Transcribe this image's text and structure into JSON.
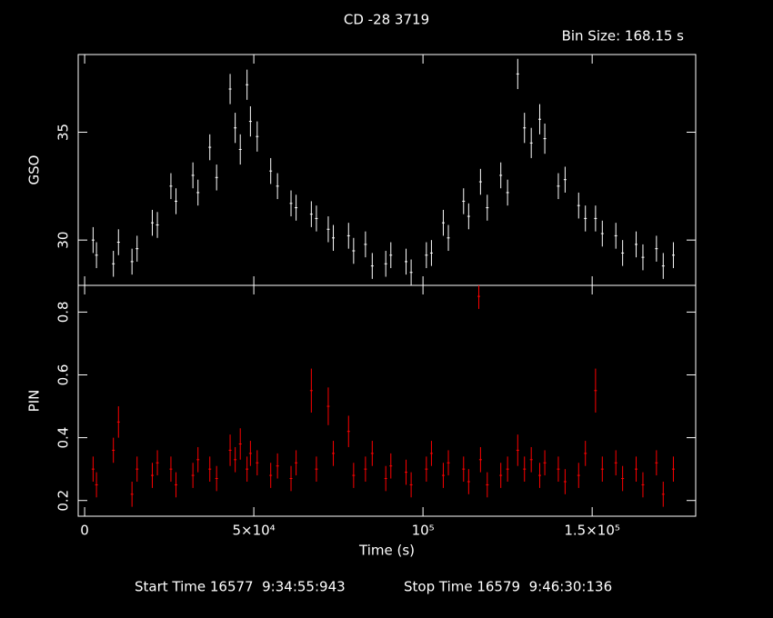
{
  "footer": [
    "Start Time 16577  9:34:55:943",
    "Stop Time 16579  9:46:30:136"
  ],
  "chart_data": [
    {
      "type": "scatter",
      "title": "CD -28 3719",
      "subtitle": "Bin Size: 168.15 s",
      "y_label": "GSO",
      "color": "#ffffff",
      "xlim": [
        -1900,
        180600
      ],
      "ylim": [
        27.9,
        38.6
      ],
      "yticks": [
        30,
        35
      ],
      "xticks": [
        0,
        50000,
        100000,
        150000
      ],
      "x": [
        2500,
        3500,
        8500,
        10000,
        14000,
        15500,
        20000,
        21500,
        25500,
        27000,
        32000,
        33500,
        37000,
        39000,
        43000,
        44500,
        46000,
        48000,
        49000,
        51000,
        55000,
        57000,
        61000,
        62500,
        67000,
        68500,
        72000,
        73500,
        78000,
        79500,
        83000,
        85000,
        89000,
        90500,
        95000,
        96500,
        101000,
        102500,
        106000,
        107500,
        112000,
        113500,
        117000,
        119000,
        123000,
        125000,
        128000,
        130000,
        132000,
        134500,
        136000,
        140000,
        142000,
        146000,
        148000,
        151000,
        153000,
        157000,
        159000,
        163000,
        165000,
        169000,
        171000,
        174000
      ],
      "values": [
        30.0,
        29.3,
        28.9,
        29.9,
        29.0,
        29.6,
        30.8,
        30.7,
        32.5,
        31.8,
        33.0,
        32.2,
        34.3,
        32.9,
        37.0,
        35.2,
        34.2,
        37.2,
        35.5,
        34.8,
        33.2,
        32.5,
        31.7,
        31.5,
        31.2,
        31.0,
        30.5,
        30.1,
        30.2,
        29.5,
        29.8,
        28.8,
        28.9,
        29.3,
        29.0,
        28.5,
        29.3,
        29.4,
        30.8,
        30.1,
        31.8,
        31.1,
        32.7,
        31.5,
        33.0,
        32.2,
        37.7,
        35.2,
        34.5,
        35.6,
        34.7,
        32.5,
        32.8,
        31.6,
        31.0,
        31.0,
        30.3,
        30.2,
        29.4,
        29.8,
        29.2,
        29.6,
        28.8,
        29.3
      ],
      "errors": [
        0.6,
        0.6,
        0.6,
        0.6,
        0.6,
        0.6,
        0.6,
        0.6,
        0.6,
        0.6,
        0.6,
        0.6,
        0.6,
        0.6,
        0.7,
        0.7,
        0.7,
        0.7,
        0.7,
        0.7,
        0.6,
        0.6,
        0.6,
        0.6,
        0.6,
        0.6,
        0.6,
        0.6,
        0.6,
        0.6,
        0.6,
        0.6,
        0.6,
        0.6,
        0.6,
        0.6,
        0.6,
        0.6,
        0.6,
        0.6,
        0.6,
        0.6,
        0.6,
        0.6,
        0.6,
        0.6,
        0.7,
        0.7,
        0.7,
        0.7,
        0.7,
        0.6,
        0.6,
        0.6,
        0.6,
        0.6,
        0.6,
        0.6,
        0.6,
        0.6,
        0.6,
        0.6,
        0.6,
        0.6
      ]
    },
    {
      "type": "scatter",
      "y_label": "PIN",
      "x_label": "Time (s)",
      "color": "#ff0000",
      "xlim": [
        -1900,
        180600
      ],
      "ylim": [
        0.15,
        0.885
      ],
      "yticks": [
        0.2,
        0.4,
        0.6,
        0.8
      ],
      "xticks": [
        0,
        {
          "value": 50000,
          "label": "5×10⁴"
        },
        {
          "value": 100000,
          "label": "10⁵"
        },
        {
          "value": 150000,
          "label": "1.5×10⁵"
        }
      ],
      "x": [
        2500,
        3500,
        8500,
        10000,
        14000,
        15500,
        20000,
        21500,
        25500,
        27000,
        32000,
        33500,
        37000,
        39000,
        43000,
        44500,
        46000,
        48000,
        49000,
        51000,
        55000,
        57000,
        61000,
        62500,
        67000,
        68500,
        72000,
        73500,
        78000,
        79500,
        83000,
        85000,
        89000,
        90500,
        95000,
        96500,
        101000,
        102500,
        106000,
        107500,
        112000,
        113500,
        116500,
        117000,
        119000,
        123000,
        125000,
        128000,
        130000,
        132000,
        134500,
        136000,
        140000,
        142000,
        146000,
        148000,
        151000,
        153000,
        157000,
        159000,
        163000,
        165000,
        169000,
        171000,
        174000
      ],
      "values": [
        0.3,
        0.25,
        0.36,
        0.45,
        0.22,
        0.3,
        0.28,
        0.32,
        0.3,
        0.25,
        0.28,
        0.33,
        0.3,
        0.27,
        0.36,
        0.33,
        0.38,
        0.3,
        0.35,
        0.32,
        0.28,
        0.31,
        0.27,
        0.32,
        0.55,
        0.3,
        0.5,
        0.35,
        0.42,
        0.28,
        0.3,
        0.35,
        0.27,
        0.31,
        0.29,
        0.25,
        0.3,
        0.35,
        0.28,
        0.32,
        0.3,
        0.26,
        0.85,
        0.33,
        0.25,
        0.28,
        0.3,
        0.36,
        0.3,
        0.33,
        0.28,
        0.32,
        0.3,
        0.26,
        0.28,
        0.35,
        0.55,
        0.3,
        0.32,
        0.27,
        0.3,
        0.25,
        0.32,
        0.22,
        0.3
      ],
      "errors": [
        0.04,
        0.04,
        0.04,
        0.05,
        0.04,
        0.04,
        0.04,
        0.04,
        0.04,
        0.04,
        0.04,
        0.04,
        0.04,
        0.04,
        0.05,
        0.04,
        0.05,
        0.04,
        0.04,
        0.04,
        0.04,
        0.04,
        0.04,
        0.04,
        0.07,
        0.04,
        0.06,
        0.04,
        0.05,
        0.04,
        0.04,
        0.04,
        0.04,
        0.04,
        0.04,
        0.04,
        0.04,
        0.04,
        0.04,
        0.04,
        0.04,
        0.04,
        0.04,
        0.04,
        0.04,
        0.04,
        0.04,
        0.05,
        0.04,
        0.04,
        0.04,
        0.04,
        0.04,
        0.04,
        0.04,
        0.04,
        0.07,
        0.04,
        0.04,
        0.04,
        0.04,
        0.04,
        0.04,
        0.04,
        0.04
      ]
    }
  ]
}
